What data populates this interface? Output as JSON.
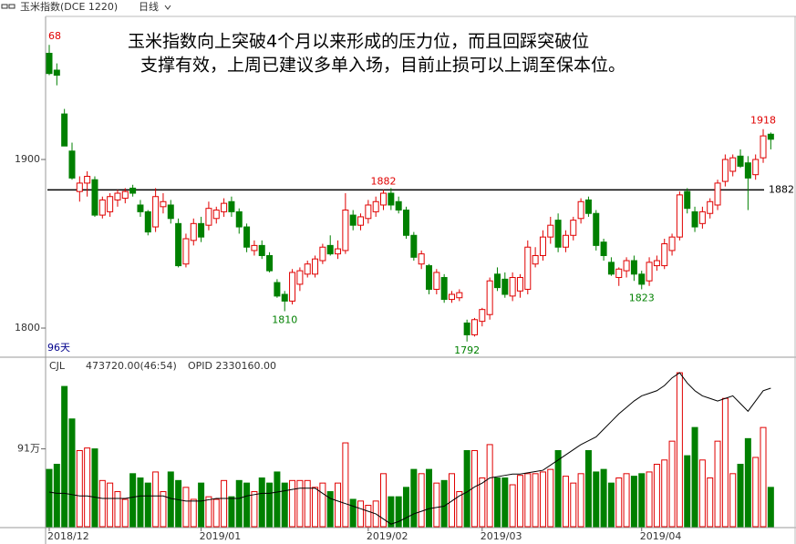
{
  "header": {
    "symbol": "玉米指数(DCE 1220)",
    "period": "日线"
  },
  "chart_data": {
    "type": "candlestick",
    "annotation": [
      "玉米指数向上突破4个月以来形成的压力位，而且回踩突破位",
      "支撑有效，上周已建议多单入场，目前止损可以上调至保本位。"
    ],
    "day_count": "96天",
    "categories": [
      "2018/12",
      null,
      null,
      null,
      null,
      null,
      null,
      null,
      null,
      null,
      null,
      null,
      null,
      null,
      null,
      null,
      null,
      null,
      null,
      null,
      "2019/01",
      null,
      null,
      null,
      null,
      null,
      null,
      null,
      null,
      null,
      null,
      null,
      null,
      null,
      null,
      null,
      null,
      null,
      null,
      null,
      null,
      null,
      "2019/02",
      null,
      null,
      null,
      null,
      null,
      null,
      null,
      null,
      null,
      null,
      null,
      null,
      null,
      null,
      "2019/03",
      null,
      null,
      null,
      null,
      null,
      null,
      null,
      null,
      null,
      null,
      null,
      null,
      null,
      null,
      null,
      null,
      null,
      null,
      null,
      null,
      "2019/04",
      null,
      null,
      null,
      null,
      null,
      null,
      null,
      null,
      null,
      null,
      null,
      null,
      null,
      null,
      null,
      null,
      null
    ],
    "open": [
      1963,
      1953,
      1927,
      1905,
      1881,
      1886,
      1888,
      1867,
      1869,
      1876,
      1877,
      1883,
      1873,
      1869,
      1860,
      1872,
      1873,
      1862,
      1838,
      1852,
      1862,
      1861,
      1865,
      1869,
      1875,
      1869,
      1860,
      1846,
      1849,
      1843,
      1827,
      1820,
      1816,
      1826,
      1832,
      1832,
      1840,
      1849,
      1844,
      1846,
      1867,
      1861,
      1865,
      1869,
      1873,
      1880,
      1875,
      1870,
      1855,
      1838,
      1837,
      1823,
      1830,
      1817,
      1818,
      1803,
      1796,
      1804,
      1808,
      1832,
      1829,
      1819,
      1822,
      1823,
      1838,
      1843,
      1854,
      1864,
      1848,
      1855,
      1865,
      1876,
      1868,
      1851,
      1839,
      1830,
      1834,
      1840,
      1832,
      1828,
      1837,
      1837,
      1846,
      1854,
      1881,
      1869,
      1862,
      1868,
      1873,
      1887,
      1893,
      1902,
      1898,
      1891,
      1901,
      1915
    ],
    "high": [
      1968,
      1957,
      1930,
      1910,
      1890,
      1893,
      1890,
      1878,
      1880,
      1882,
      1883,
      1885,
      1876,
      1870,
      1883,
      1880,
      1876,
      1865,
      1856,
      1865,
      1866,
      1875,
      1872,
      1877,
      1878,
      1871,
      1862,
      1852,
      1852,
      1845,
      1829,
      1822,
      1835,
      1836,
      1840,
      1843,
      1850,
      1855,
      1852,
      1880,
      1870,
      1868,
      1876,
      1878,
      1882,
      1883,
      1878,
      1872,
      1857,
      1846,
      1838,
      1835,
      1832,
      1822,
      1823,
      1805,
      1806,
      1812,
      1830,
      1836,
      1833,
      1833,
      1832,
      1852,
      1848,
      1858,
      1866,
      1868,
      1858,
      1866,
      1877,
      1878,
      1870,
      1853,
      1842,
      1836,
      1842,
      1843,
      1834,
      1842,
      1843,
      1853,
      1856,
      1881,
      1883,
      1872,
      1872,
      1877,
      1888,
      1903,
      1903,
      1906,
      1902,
      1903,
      1918,
      1916
    ],
    "low": [
      1950,
      1944,
      1908,
      1888,
      1875,
      1878,
      1866,
      1865,
      1866,
      1872,
      1874,
      1878,
      1866,
      1855,
      1857,
      1868,
      1862,
      1836,
      1836,
      1849,
      1851,
      1858,
      1862,
      1866,
      1866,
      1856,
      1845,
      1843,
      1841,
      1833,
      1818,
      1810,
      1814,
      1822,
      1830,
      1830,
      1838,
      1843,
      1841,
      1844,
      1858,
      1858,
      1862,
      1866,
      1870,
      1870,
      1868,
      1853,
      1840,
      1835,
      1820,
      1820,
      1815,
      1815,
      1816,
      1792,
      1795,
      1801,
      1805,
      1822,
      1818,
      1816,
      1818,
      1820,
      1836,
      1840,
      1850,
      1845,
      1845,
      1852,
      1862,
      1866,
      1846,
      1840,
      1831,
      1825,
      1830,
      1828,
      1823,
      1825,
      1834,
      1835,
      1843,
      1852,
      1868,
      1857,
      1859,
      1865,
      1870,
      1884,
      1890,
      1895,
      1870,
      1888,
      1898,
      1906
    ],
    "close": [
      1951,
      1950,
      1908,
      1889,
      1886,
      1890,
      1867,
      1876,
      1878,
      1880,
      1881,
      1880,
      1869,
      1857,
      1878,
      1875,
      1865,
      1837,
      1853,
      1862,
      1854,
      1871,
      1870,
      1874,
      1869,
      1860,
      1848,
      1849,
      1843,
      1834,
      1819,
      1816,
      1833,
      1834,
      1838,
      1841,
      1848,
      1844,
      1847,
      1870,
      1861,
      1866,
      1873,
      1875,
      1880,
      1873,
      1870,
      1855,
      1842,
      1844,
      1823,
      1833,
      1817,
      1820,
      1821,
      1796,
      1805,
      1811,
      1828,
      1824,
      1820,
      1830,
      1830,
      1848,
      1843,
      1854,
      1861,
      1848,
      1855,
      1864,
      1875,
      1868,
      1849,
      1843,
      1832,
      1835,
      1840,
      1832,
      1826,
      1839,
      1840,
      1850,
      1854,
      1879,
      1871,
      1860,
      1869,
      1875,
      1886,
      1900,
      1901,
      1896,
      1889,
      1900,
      1914,
      1912
    ],
    "up_color": "#e00000",
    "down_color": "#008000",
    "ylim": [
      1783.8,
      1983.8
    ],
    "yticks": [
      1900,
      1800
    ],
    "support_line": 1882,
    "markers": [
      {
        "text": "68",
        "index": 0,
        "side": "high"
      },
      {
        "text": "1882",
        "index": 44,
        "side": "high"
      },
      {
        "text": "1810",
        "index": 31,
        "side": "low"
      },
      {
        "text": "1792",
        "index": 55,
        "side": "low"
      },
      {
        "text": "1823",
        "index": 78,
        "side": "low"
      },
      {
        "text": "1918",
        "index": 94,
        "side": "high"
      }
    ],
    "volume_header": [
      "CJL",
      "473720.00(46:54)",
      "OPID 2330160.00"
    ],
    "volume": [
      67,
      73,
      164,
      126,
      89,
      92,
      91,
      54,
      51,
      41,
      32,
      62,
      57,
      51,
      64,
      41,
      64,
      54,
      46,
      32,
      51,
      35,
      32,
      54,
      35,
      54,
      51,
      41,
      57,
      51,
      64,
      51,
      54,
      54,
      54,
      46,
      51,
      41,
      51,
      98,
      32,
      30,
      25,
      30,
      62,
      35,
      35,
      46,
      67,
      62,
      67,
      51,
      54,
      62,
      41,
      89,
      89,
      57,
      96,
      57,
      57,
      49,
      60,
      62,
      62,
      64,
      67,
      89,
      59,
      51,
      62,
      89,
      64,
      67,
      51,
      57,
      62,
      59,
      62,
      64,
      73,
      78,
      100,
      180,
      83,
      116,
      78,
      57,
      100,
      150,
      62,
      73,
      103,
      81,
      116,
      46
    ],
    "vlim": [
      0,
      195
    ],
    "vticks": [
      {
        "value": 91,
        "label": "91万"
      }
    ],
    "open_interest": [
      193.5,
      193,
      193,
      192.5,
      192,
      192,
      191.5,
      191,
      191,
      191,
      191,
      191.5,
      192,
      192,
      192,
      192,
      191,
      190.5,
      190,
      190,
      190,
      190.5,
      191,
      191,
      191,
      191,
      192,
      192.5,
      193,
      193,
      193.5,
      194,
      194.5,
      195,
      195,
      195,
      193,
      191,
      190,
      189,
      188,
      187,
      186,
      185,
      183,
      181,
      182,
      183.5,
      185,
      186,
      187,
      187.5,
      188,
      190,
      192,
      193.5,
      195.5,
      197,
      199,
      199.5,
      200,
      200.5,
      200.5,
      201,
      201.5,
      202,
      204,
      206,
      208,
      210,
      212,
      213.5,
      215,
      218,
      221,
      224,
      226.5,
      229,
      231,
      232,
      233,
      235,
      238,
      240,
      236,
      233,
      231,
      230,
      229,
      230,
      231,
      228,
      225,
      229,
      233,
      234
    ],
    "oi_color": "#000000",
    "y2lim": [
      180,
      245
    ]
  }
}
